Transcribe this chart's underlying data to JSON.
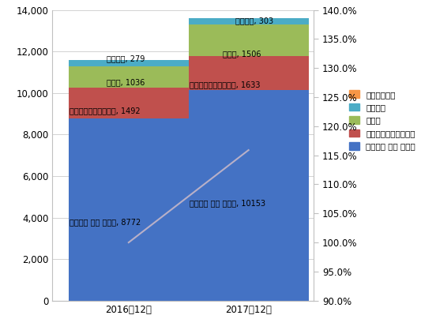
{
  "categories": [
    "2016年12月",
    "2017年12月"
  ],
  "series": {
    "タイムズ カー プラス": [
      8772,
      10153
    ],
    "オリックスカーシェア": [
      1492,
      1633
    ],
    "カレコ": [
      1036,
      1506
    ],
    "ガリテコ": [
      279,
      303
    ],
    "アース・カー": [
      0,
      0
    ]
  },
  "colors": {
    "タイムズ カー プラス": "#4472C4",
    "オリックスカーシェア": "#C0504D",
    "カレコ": "#9BBB59",
    "ガリテコ": "#4BACC6",
    "アース・カー": "#F79646"
  },
  "line_values": [
    100.0,
    115.9
  ],
  "line_color": "#B8B0C8",
  "ylim_left": [
    0,
    14000
  ],
  "ylim_right": [
    90.0,
    140.0
  ],
  "yticks_left": [
    0,
    2000,
    4000,
    6000,
    8000,
    10000,
    12000,
    14000
  ],
  "yticks_right": [
    90.0,
    95.0,
    100.0,
    105.0,
    110.0,
    115.0,
    120.0,
    125.0,
    130.0,
    135.0,
    140.0
  ],
  "background_color": "#FFFFFF",
  "plot_bg_color": "#FFFFFF",
  "grid_color": "#C0C0C0",
  "bar_width": 0.55,
  "label_fontsize": 7.0,
  "legend_order": [
    "アース・カー",
    "ガリテコ",
    "カレコ",
    "オリックスカーシェア",
    "タイムズ カー プラス"
  ]
}
